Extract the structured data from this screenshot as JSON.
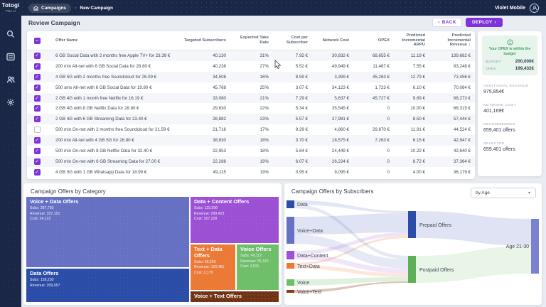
{
  "topbar": {
    "logo": "Totogi",
    "logo_sub": "Plan AI",
    "breadcrumb_section": "Campaigns",
    "breadcrumb_sep": "›",
    "breadcrumb_page": "New Campaign",
    "account_name": "Violet Mobile"
  },
  "sidebar": {
    "icons": [
      "search-icon",
      "list-icon",
      "users-icon",
      "settings-icon"
    ]
  },
  "page": {
    "title": "Review Campaign",
    "back_button": "BACK",
    "deploy_button": "DEPLOY",
    "back_arrow": "‹",
    "deploy_arrow": "›"
  },
  "table": {
    "columns": [
      "Offer Name",
      "Targeted Subscribers",
      "Expected Take Rate",
      "Cost per Subscriber",
      "Network Cost",
      "OPEX",
      "Predicted Incremental ARPU",
      "Predicted Incremental Revenue"
    ],
    "sort_icon": "↓",
    "rows": [
      {
        "checked": true,
        "name": "6 GB Social Data with 2 months free Apple TV+ for 23.39 €",
        "targeted_subscribers": "40,130",
        "take_rate": "31%",
        "cost_per_subscriber": "7.92 €",
        "network_cost": "30,832 €",
        "opex": "68,655 €",
        "arpu": "11.19 €",
        "revenue": "139,682 €"
      },
      {
        "checked": true,
        "name": "200 min All-net with 6 GB Social Data for 28.80 €",
        "targeted_subscribers": "40,238",
        "take_rate": "27%",
        "cost_per_subscriber": "5.52 €",
        "network_cost": "49,949 €",
        "opex": "11,467 €",
        "arpu": "7.55 €",
        "revenue": "83,248 €"
      },
      {
        "checked": true,
        "name": "4 GB 5G with 2 months free Soundcloud for 26.09 €",
        "targeted_subscribers": "34,508",
        "take_rate": "16%",
        "cost_per_subscriber": "8.59 €",
        "network_cost": "3,399 €",
        "opex": "45,263 €",
        "arpu": "12.79 €",
        "revenue": "72,456 €"
      },
      {
        "checked": true,
        "name": "500 sms All-net with 6 GB Social Data for 19.80 €",
        "targeted_subscribers": "45,768",
        "take_rate": "25%",
        "cost_per_subscriber": "3.07 €",
        "network_cost": "34,123 €",
        "opex": "1,723 €",
        "arpu": "6.10 €",
        "revenue": "70,084 €"
      },
      {
        "checked": true,
        "name": "2 GB 4G with 1 month free Netflix for 16.19 €",
        "targeted_subscribers": "33,080",
        "take_rate": "21%",
        "cost_per_subscriber": "7.29 €",
        "network_cost": "5,637 €",
        "opex": "45,727 €",
        "arpu": "9.69 €",
        "revenue": "68,273 €"
      },
      {
        "checked": true,
        "name": "2 GB 4G with 8 GB Netflix Data for 28.80 €",
        "targeted_subscribers": "29,630",
        "take_rate": "22%",
        "cost_per_subscriber": "5.34 €",
        "network_cost": "35,545 €",
        "opex": "0",
        "arpu": "10.00 €",
        "revenue": "66,315 €"
      },
      {
        "checked": true,
        "name": "2 GB 4G with 6 GB Streaming Data for 23.40 €",
        "targeted_subscribers": "28,882",
        "take_rate": "23%",
        "cost_per_subscriber": "5.57 €",
        "network_cost": "37,981 €",
        "opex": "0",
        "arpu": "8.50 €",
        "revenue": "57,444 €"
      },
      {
        "checked": false,
        "name": "500 min On-net with 2 months free Soundcloud for 21.59 €",
        "targeted_subscribers": "21,716",
        "take_rate": "17%",
        "cost_per_subscriber": "9.29 €",
        "network_cost": "4,860 €",
        "opex": "29,870 €",
        "arpu": "11.91 €",
        "revenue": "44,524 €"
      },
      {
        "checked": true,
        "name": "200 min All-net with 4 GB 5G for 28.80 €",
        "targeted_subscribers": "38,830",
        "take_rate": "18%",
        "cost_per_subscriber": "3.70 €",
        "network_cost": "18,575 €",
        "opex": "7,263 €",
        "arpu": "6.15 €",
        "revenue": "42,947 €"
      },
      {
        "checked": true,
        "name": "500 min On-net with 8 GB Netflix Data for 32.40 €",
        "targeted_subscribers": "22,953",
        "take_rate": "18%",
        "cost_per_subscriber": "5.84 €",
        "network_cost": "24,449 €",
        "opex": "0",
        "arpu": "10.22 €",
        "revenue": "42,640 €"
      },
      {
        "checked": true,
        "name": "500 min On-net with 6 GB Streaming Data for 27.00 €",
        "targeted_subscribers": "22,288",
        "take_rate": "19%",
        "cost_per_subscriber": "6.07 €",
        "network_cost": "26,224 €",
        "opex": "0",
        "arpu": "8.72 €",
        "revenue": "37,364 €"
      },
      {
        "checked": true,
        "name": "4 GB 5G with 1 GB Whatsapp Data for 18.99 €",
        "targeted_subscribers": "49,115",
        "take_rate": "19%",
        "cost_per_subscriber": "0.95 €",
        "network_cost": "9,095 €",
        "opex": "0",
        "arpu": "4.00 €",
        "revenue": "36,179 €"
      }
    ]
  },
  "summary": {
    "status_message": "Your OPEX is within the budget",
    "budget_label": "BUDGET",
    "budget_value": "200,000€",
    "opex_label": "OPEX",
    "opex_value": "199,432€",
    "sections": [
      {
        "label": "ADDITIONAL REVENUE",
        "value": "975,854€"
      },
      {
        "label": "NETWORK COST",
        "value": "401,169€"
      },
      {
        "label": "RECOMMENDED",
        "value": "659,401 offers"
      },
      {
        "label": "SELECTED",
        "value": "659,401 offers"
      }
    ]
  },
  "treemap": {
    "title": "Campaign Offers by Category",
    "blocks": [
      {
        "name": "Voice + Data Offers",
        "lines": [
          "Subs: 287,793",
          "Revenue: 337,101",
          "Cost: 24,122"
        ],
        "color": "#6671c4"
      },
      {
        "name": "Data Offers",
        "lines": [
          "Subs: 128,230",
          "Revenue: 209,057"
        ],
        "color": "#2b4da7"
      },
      {
        "name": "Data + Content Offers",
        "lines": [
          "Subs: 115,596",
          "Revenue: 299,423",
          "Cost: 167,228"
        ],
        "color": "#9c51d4"
      },
      {
        "name": "Text + Data Offers",
        "lines": [
          "Subs: 69,399",
          "Revenue: 100,481",
          "Cost: 2,170"
        ],
        "color": "#ec7a36"
      },
      {
        "name": "Voice Offers",
        "lines": [
          "Subs: 49,112",
          "Revenue: 25,310",
          "Cost: 3,531"
        ],
        "color": "#6fbe6a"
      },
      {
        "name": "Voice + Text Offers",
        "lines": [],
        "color": "#6e2f10"
      }
    ]
  },
  "sankey": {
    "title": "Campaign Offers by Subscribers",
    "filter_value": "by Age",
    "left_nodes": [
      {
        "label": "Data",
        "color": "#2b4da7"
      },
      {
        "label": "Voice+Data",
        "color": "#6671c4"
      },
      {
        "label": "Data+Content",
        "color": "#9c51d4"
      },
      {
        "label": "Text+Data",
        "color": "#ec7a36"
      },
      {
        "label": "Voice",
        "color": "#6fbe6a"
      },
      {
        "label": "Voice+Text",
        "color": "#8a3a16"
      }
    ],
    "mid_nodes": [
      {
        "label": "Prepaid Offers",
        "color": "#2b4da7"
      },
      {
        "label": "Postpaid Offers",
        "color": "#5db058"
      }
    ],
    "right_nodes": [
      {
        "label": "Age 21-30",
        "color": "#7b80d0"
      }
    ]
  },
  "colors": {
    "accent": "#7e34d8",
    "status_green": "#3da065",
    "navy": "#1a2746"
  }
}
